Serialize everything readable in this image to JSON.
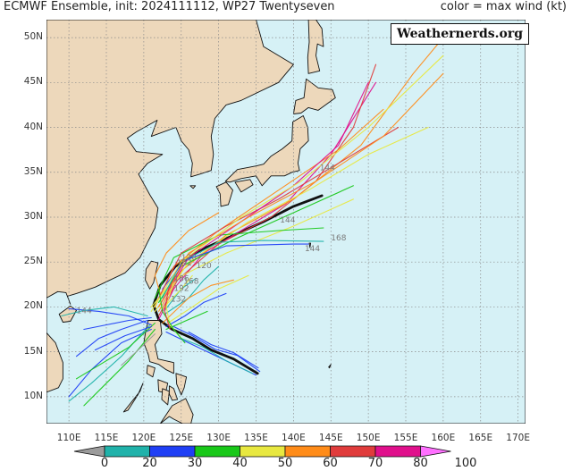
{
  "header": {
    "title": "ECMWF Ensemble, init: 2024111112, WP27 Twentyseven",
    "legend_note": "color = max wind (kt)"
  },
  "watermark": "Weathernerds.org",
  "map": {
    "lon_range": [
      107,
      171
    ],
    "lat_range": [
      7,
      52
    ],
    "lat_labels": [
      "10N",
      "15N",
      "20N",
      "25N",
      "30N",
      "35N",
      "40N",
      "45N",
      "50N"
    ],
    "lon_labels": [
      "110E",
      "115E",
      "120E",
      "125E",
      "130E",
      "135E",
      "140E",
      "145E",
      "150E",
      "155E",
      "160E",
      "165E",
      "170E"
    ],
    "ocean_color": "#d6f1f6",
    "land_color": "#edd8bb",
    "hour_labels": [
      "144",
      "144",
      "168",
      "144",
      "192",
      "168",
      "120",
      "192",
      "132",
      "144",
      "186",
      "120"
    ]
  },
  "colorbar": {
    "labels": [
      "0",
      "20",
      "30",
      "40",
      "50",
      "60",
      "70",
      "80",
      "100"
    ],
    "colors": [
      "#9b9b9b",
      "#20b2aa",
      "#1f3ff5",
      "#19c819",
      "#e8e840",
      "#ff8c19",
      "#e03c3c",
      "#e0108c",
      "#ff70ff"
    ]
  },
  "tracks": [
    {
      "color": "#111111",
      "points": [
        [
          135.2,
          12.6
        ],
        [
          132,
          14.2
        ],
        [
          129,
          15.2
        ],
        [
          126.5,
          16.5
        ],
        [
          123.8,
          17.5
        ],
        [
          122,
          18.6
        ],
        [
          121.3,
          20.2
        ],
        [
          122.2,
          22.4
        ],
        [
          124.2,
          24.5
        ],
        [
          127.5,
          26.3
        ],
        [
          131.5,
          27.8
        ],
        [
          136,
          29.5
        ],
        [
          140,
          31.2
        ],
        [
          143.8,
          32.4
        ]
      ]
    },
    {
      "color": "#e0108c",
      "points": [
        [
          122,
          18.6
        ],
        [
          124,
          22
        ],
        [
          128,
          26
        ],
        [
          133,
          28.5
        ],
        [
          139,
          31.5
        ],
        [
          145,
          37
        ],
        [
          151,
          45
        ]
      ]
    },
    {
      "color": "#e03c3c",
      "points": [
        [
          122,
          19
        ],
        [
          124.5,
          23
        ],
        [
          130,
          27
        ],
        [
          137,
          30
        ],
        [
          143,
          34
        ],
        [
          148,
          40
        ],
        [
          151,
          47
        ]
      ]
    },
    {
      "color": "#ff8c19",
      "points": [
        [
          122,
          19.5
        ],
        [
          125,
          24
        ],
        [
          131,
          28
        ],
        [
          140,
          32
        ],
        [
          149,
          38
        ],
        [
          156,
          46
        ],
        [
          160,
          50
        ]
      ]
    },
    {
      "color": "#ff8c19",
      "points": [
        [
          121.5,
          20
        ],
        [
          124,
          24.5
        ],
        [
          130,
          28.5
        ],
        [
          138,
          33
        ],
        [
          146,
          37.5
        ],
        [
          152,
          42
        ]
      ]
    },
    {
      "color": "#e8e840",
      "points": [
        [
          121.5,
          19.5
        ],
        [
          126,
          25
        ],
        [
          134,
          29.5
        ],
        [
          142,
          33
        ],
        [
          150,
          37
        ],
        [
          158,
          40
        ]
      ]
    },
    {
      "color": "#e8e840",
      "points": [
        [
          121,
          20
        ],
        [
          124,
          23
        ],
        [
          131,
          26
        ],
        [
          140,
          29
        ],
        [
          148,
          32
        ]
      ]
    },
    {
      "color": "#19c819",
      "points": [
        [
          122,
          20.5
        ],
        [
          125,
          24.5
        ],
        [
          132,
          27.5
        ],
        [
          140,
          30.5
        ],
        [
          148,
          33.5
        ]
      ]
    },
    {
      "color": "#19c819",
      "points": [
        [
          121.5,
          21
        ],
        [
          124,
          25.5
        ],
        [
          130,
          28
        ],
        [
          138,
          28.5
        ],
        [
          144,
          28.8
        ]
      ]
    },
    {
      "color": "#20b2aa",
      "points": [
        [
          122.5,
          21
        ],
        [
          125,
          25
        ],
        [
          130,
          27.2
        ],
        [
          136,
          27.4
        ],
        [
          144,
          27.3
        ]
      ]
    },
    {
      "color": "#1f3ff5",
      "points": [
        [
          122.5,
          22
        ],
        [
          125.5,
          25.2
        ],
        [
          131,
          26.8
        ],
        [
          140,
          27
        ],
        [
          142,
          27
        ]
      ]
    },
    {
      "color": "#e03c3c",
      "points": [
        [
          122,
          21
        ],
        [
          125,
          26
        ],
        [
          131,
          29
        ],
        [
          138,
          32
        ],
        [
          146,
          36
        ],
        [
          154,
          40
        ]
      ]
    },
    {
      "color": "#e0108c",
      "points": [
        [
          122,
          20
        ],
        [
          126,
          25.5
        ],
        [
          133,
          29.5
        ],
        [
          140,
          33.5
        ],
        [
          146,
          38
        ],
        [
          150,
          45
        ]
      ]
    },
    {
      "color": "#ff8c19",
      "points": [
        [
          122,
          20
        ],
        [
          126,
          26
        ],
        [
          134,
          30
        ],
        [
          143,
          34
        ],
        [
          152,
          39
        ],
        [
          160,
          46
        ]
      ]
    },
    {
      "color": "#e8e840",
      "points": [
        [
          121,
          19.5
        ],
        [
          125,
          25
        ],
        [
          133,
          30
        ],
        [
          141,
          34
        ],
        [
          150,
          40
        ],
        [
          160,
          48
        ]
      ]
    },
    {
      "color": "#1f3ff5",
      "points": [
        [
          121,
          18
        ],
        [
          118,
          19
        ],
        [
          114,
          19.5
        ],
        [
          110,
          19.8
        ]
      ]
    },
    {
      "color": "#1f3ff5",
      "points": [
        [
          120.5,
          18.5
        ],
        [
          117,
          17.5
        ],
        [
          114,
          16.5
        ],
        [
          111,
          14.5
        ]
      ]
    },
    {
      "color": "#1f3ff5",
      "points": [
        [
          121,
          17.5
        ],
        [
          117,
          16
        ],
        [
          113,
          13
        ],
        [
          110,
          10
        ]
      ]
    },
    {
      "color": "#20b2aa",
      "points": [
        [
          120.8,
          18
        ],
        [
          117,
          14.5
        ],
        [
          113,
          11.5
        ],
        [
          110,
          9.5
        ]
      ]
    },
    {
      "color": "#19c819",
      "points": [
        [
          121.5,
          18.2
        ],
        [
          118,
          15.5
        ],
        [
          114,
          13.5
        ],
        [
          111,
          12
        ]
      ]
    },
    {
      "color": "#1f3ff5",
      "points": [
        [
          121,
          18.8
        ],
        [
          118,
          18.5
        ],
        [
          115,
          18
        ],
        [
          112,
          17.5
        ]
      ]
    },
    {
      "color": "#20b2aa",
      "points": [
        [
          120.5,
          19
        ],
        [
          116,
          20
        ],
        [
          112,
          19.6
        ],
        [
          109,
          19
        ]
      ]
    },
    {
      "color": "#19c819",
      "points": [
        [
          121.5,
          17.5
        ],
        [
          118,
          14
        ],
        [
          115,
          11.5
        ],
        [
          112,
          9
        ]
      ]
    },
    {
      "color": "#1f3ff5",
      "points": [
        [
          121,
          17.8
        ],
        [
          117.5,
          16.8
        ],
        [
          113.5,
          15.2
        ]
      ]
    },
    {
      "color": "#9b9b9b",
      "points": [
        [
          121.5,
          17
        ],
        [
          119,
          15
        ],
        [
          117,
          13.5
        ]
      ]
    },
    {
      "color": "#20b2aa",
      "points": [
        [
          122.8,
          19.2
        ],
        [
          126,
          21
        ],
        [
          128,
          23
        ],
        [
          130,
          24.5
        ]
      ]
    },
    {
      "color": "#ff8c19",
      "points": [
        [
          122.5,
          18.2
        ],
        [
          126,
          21
        ],
        [
          129,
          22.4
        ],
        [
          132,
          23
        ]
      ]
    },
    {
      "color": "#e8e840",
      "points": [
        [
          123.2,
          18.2
        ],
        [
          126.5,
          20
        ],
        [
          130,
          22
        ],
        [
          134,
          23.5
        ]
      ]
    },
    {
      "color": "#1f3ff5",
      "points": [
        [
          123,
          17.8
        ],
        [
          125.5,
          19
        ],
        [
          128,
          20.5
        ],
        [
          131,
          21.5
        ]
      ]
    },
    {
      "color": "#19c819",
      "points": [
        [
          123,
          17.5
        ],
        [
          126,
          18.6
        ],
        [
          128.5,
          19.5
        ]
      ]
    },
    {
      "color": "#20b2aa",
      "points": [
        [
          122.8,
          19.6
        ],
        [
          125,
          22
        ],
        [
          127,
          23.2
        ]
      ]
    },
    {
      "color": "#ff8c19",
      "points": [
        [
          122.2,
          21.5
        ],
        [
          121.5,
          23.5
        ],
        [
          123,
          26
        ],
        [
          126,
          28.5
        ],
        [
          130,
          30.5
        ]
      ]
    },
    {
      "color": "#e8e840",
      "points": [
        [
          122.5,
          19.8
        ],
        [
          124.8,
          21.8
        ],
        [
          126.5,
          23.5
        ]
      ]
    },
    {
      "color": "#1f3ff5",
      "points": [
        [
          135.5,
          12.8
        ],
        [
          132.5,
          14.6
        ],
        [
          129.5,
          15.3
        ],
        [
          126.5,
          16.8
        ],
        [
          124,
          17.8
        ]
      ]
    },
    {
      "color": "#1f3ff5",
      "points": [
        [
          135,
          12.4
        ],
        [
          131.5,
          13.8
        ],
        [
          128.5,
          15
        ],
        [
          125.5,
          16.2
        ],
        [
          123,
          17.2
        ]
      ]
    },
    {
      "color": "#1f3ff5",
      "points": [
        [
          135.3,
          13.2
        ],
        [
          132,
          14.9
        ],
        [
          129,
          15.8
        ],
        [
          126,
          17.2
        ]
      ]
    },
    {
      "color": "#20b2aa",
      "points": [
        [
          134.5,
          12.6
        ],
        [
          131,
          14
        ],
        [
          128,
          15.5
        ],
        [
          125,
          16.5
        ]
      ]
    },
    {
      "color": "#e8e840",
      "points": [
        [
          125,
          16.5
        ],
        [
          123.5,
          18
        ],
        [
          123,
          20
        ],
        [
          124,
          23
        ]
      ]
    },
    {
      "color": "#19c819",
      "points": [
        [
          125.5,
          16
        ],
        [
          124,
          17.5
        ],
        [
          122.5,
          19.5
        ],
        [
          122,
          22
        ]
      ]
    },
    {
      "color": "#e03c3c",
      "points": [
        [
          123.5,
          17.5
        ],
        [
          122.8,
          19.5
        ],
        [
          123.3,
          22
        ],
        [
          125,
          24.5
        ]
      ]
    }
  ]
}
